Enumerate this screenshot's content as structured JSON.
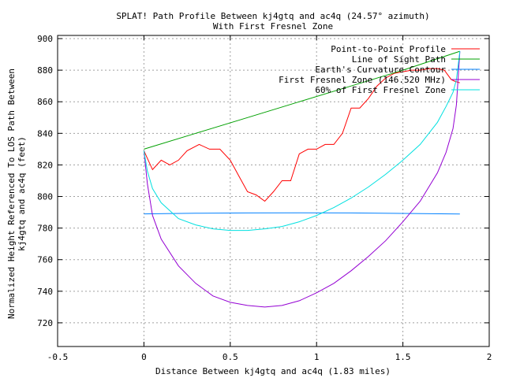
{
  "chart_data": {
    "type": "line",
    "title": "SPLAT! Path Profile Between kj4gtq and ac4q (24.57° azimuth)",
    "subtitle": "With First Fresnel Zone",
    "xlabel": "Distance Between kj4gtq and ac4q (1.83 miles)",
    "ylabel": "Normalized Height Referenced To LOS Path Between",
    "ylabel2": "kj4gtq and ac4q (feet)",
    "xlim": [
      -0.5,
      2
    ],
    "ylim": [
      705,
      902
    ],
    "xticks": [
      -0.5,
      0,
      0.5,
      1,
      1.5,
      2
    ],
    "xtick_labels": [
      "-0.5",
      "0",
      "0.5",
      "1",
      "1.5",
      "2"
    ],
    "yticks": [
      720,
      740,
      760,
      780,
      800,
      820,
      840,
      860,
      880,
      900
    ],
    "ytick_labels": [
      "720",
      "740",
      "760",
      "780",
      "800",
      "820",
      "840",
      "860",
      "880",
      "900"
    ],
    "grid": true,
    "legend_position": "top-right",
    "series": [
      {
        "name": "Point-to-Point Profile",
        "color": "#ff0000",
        "x": [
          0,
          0.05,
          0.1,
          0.15,
          0.2,
          0.25,
          0.32,
          0.38,
          0.44,
          0.5,
          0.55,
          0.6,
          0.65,
          0.7,
          0.75,
          0.8,
          0.85,
          0.9,
          0.95,
          1.0,
          1.05,
          1.1,
          1.15,
          1.2,
          1.25,
          1.3,
          1.35,
          1.4,
          1.45,
          1.5,
          1.55,
          1.6,
          1.65,
          1.7,
          1.74,
          1.78,
          1.8,
          1.83
        ],
        "y": [
          829,
          817,
          823,
          820,
          823,
          829,
          833,
          830,
          830,
          823,
          813,
          803,
          801,
          797,
          803,
          810,
          810,
          827,
          830,
          830,
          833,
          833,
          840,
          856,
          856,
          862,
          870,
          875,
          878,
          879,
          880,
          880,
          881,
          881,
          880,
          874,
          873,
          872
        ]
      },
      {
        "name": "Line of Sight Path",
        "color": "#00a000",
        "x": [
          0,
          0.3,
          0.6,
          0.9,
          1.2,
          1.5,
          1.83
        ],
        "y": [
          830,
          840,
          850,
          860,
          870,
          880,
          892
        ]
      },
      {
        "name": "Earth's Curvature Contour",
        "color": "#0080ff",
        "x": [
          0,
          0.3,
          0.6,
          0.9,
          1.2,
          1.5,
          1.83
        ],
        "y": [
          789,
          789.4,
          789.6,
          789.7,
          789.6,
          789.3,
          788.9
        ]
      },
      {
        "name": "First Fresnel Zone (146.520 MHz)",
        "color": "#9400d3",
        "x": [
          0,
          0.02,
          0.05,
          0.1,
          0.2,
          0.3,
          0.4,
          0.5,
          0.6,
          0.7,
          0.8,
          0.9,
          1.0,
          1.1,
          1.2,
          1.3,
          1.4,
          1.5,
          1.6,
          1.7,
          1.75,
          1.79,
          1.81,
          1.83
        ],
        "y": [
          829,
          808,
          788,
          773,
          756,
          745,
          737,
          733,
          731,
          730,
          731,
          734,
          739,
          745,
          753,
          762,
          772,
          784,
          797,
          815,
          828,
          843,
          858,
          892
        ]
      },
      {
        "name": "60% of First Fresnel Zone",
        "color": "#00e0e0",
        "x": [
          0,
          0.02,
          0.05,
          0.1,
          0.2,
          0.3,
          0.4,
          0.5,
          0.6,
          0.7,
          0.8,
          0.9,
          1.0,
          1.1,
          1.2,
          1.3,
          1.4,
          1.5,
          1.6,
          1.7,
          1.75,
          1.79,
          1.81,
          1.83
        ],
        "y": [
          829,
          816,
          805,
          796,
          786,
          782,
          779.5,
          778.5,
          778.5,
          779.5,
          781,
          784,
          788,
          793,
          799,
          806,
          814,
          823,
          833,
          847,
          857,
          866,
          874,
          892
        ]
      }
    ]
  }
}
